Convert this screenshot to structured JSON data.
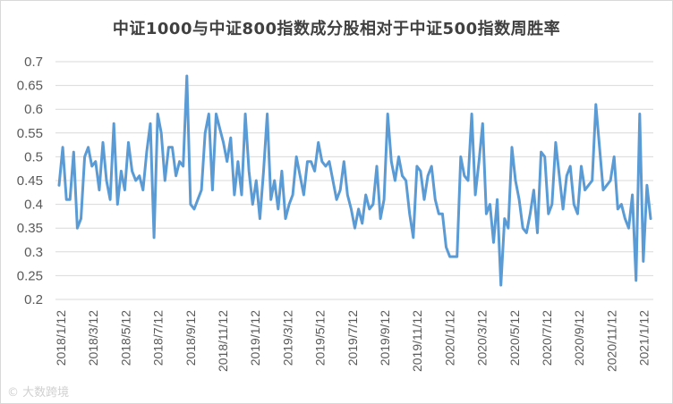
{
  "chart_data": {
    "type": "line",
    "title": "中证1000与中证800指数成分股相对于中证500指数周胜率",
    "xlabel": "",
    "ylabel": "",
    "ylim": [
      0.2,
      0.7
    ],
    "yticks": [
      "0.2",
      "0.25",
      "0.3",
      "0.35",
      "0.4",
      "0.45",
      "0.5",
      "0.55",
      "0.6",
      "0.65",
      "0.7"
    ],
    "xticks": [
      "2018/1/12",
      "2018/3/12",
      "2018/5/12",
      "2018/7/12",
      "2018/9/12",
      "2018/11/12",
      "2019/1/12",
      "2019/3/12",
      "2019/5/12",
      "2019/7/12",
      "2019/9/12",
      "2019/11/12",
      "2020/1/12",
      "2020/3/12",
      "2020/5/12",
      "2020/7/12",
      "2020/9/12",
      "2020/11/12",
      "2021/1/12"
    ],
    "grid": "horizontal",
    "legend": "none",
    "series_color": "#5b9bd5",
    "series": [
      {
        "values": [
          0.44,
          0.52,
          0.41,
          0.41,
          0.51,
          0.35,
          0.37,
          0.5,
          0.52,
          0.48,
          0.49,
          0.43,
          0.53,
          0.45,
          0.41,
          0.57,
          0.4,
          0.47,
          0.43,
          0.53,
          0.47,
          0.45,
          0.46,
          0.43,
          0.51,
          0.57,
          0.33,
          0.59,
          0.55,
          0.45,
          0.52,
          0.52,
          0.46,
          0.49,
          0.48,
          0.67,
          0.4,
          0.39,
          0.41,
          0.43,
          0.55,
          0.59,
          0.43,
          0.59,
          0.56,
          0.53,
          0.49,
          0.54,
          0.42,
          0.49,
          0.42,
          0.59,
          0.47,
          0.4,
          0.45,
          0.37,
          0.47,
          0.59,
          0.41,
          0.45,
          0.39,
          0.47,
          0.37,
          0.4,
          0.42,
          0.5,
          0.46,
          0.42,
          0.49,
          0.49,
          0.47,
          0.53,
          0.49,
          0.48,
          0.49,
          0.45,
          0.41,
          0.43,
          0.49,
          0.42,
          0.39,
          0.35,
          0.39,
          0.36,
          0.42,
          0.39,
          0.4,
          0.48,
          0.37,
          0.41,
          0.59,
          0.49,
          0.45,
          0.5,
          0.46,
          0.45,
          0.38,
          0.33,
          0.48,
          0.47,
          0.41,
          0.46,
          0.48,
          0.41,
          0.38,
          0.38,
          0.31,
          0.29,
          0.29,
          0.29,
          0.5,
          0.46,
          0.45,
          0.59,
          0.42,
          0.49,
          0.57,
          0.38,
          0.4,
          0.32,
          0.41,
          0.23,
          0.37,
          0.35,
          0.52,
          0.45,
          0.41,
          0.35,
          0.34,
          0.38,
          0.43,
          0.34,
          0.51,
          0.5,
          0.38,
          0.4,
          0.53,
          0.46,
          0.39,
          0.46,
          0.48,
          0.4,
          0.38,
          0.48,
          0.43,
          0.44,
          0.45,
          0.61,
          0.52,
          0.43,
          0.44,
          0.45,
          0.5,
          0.39,
          0.4,
          0.37,
          0.35,
          0.42,
          0.24,
          0.59,
          0.28,
          0.44,
          0.37
        ]
      }
    ]
  },
  "watermark": "© 大数跨境"
}
